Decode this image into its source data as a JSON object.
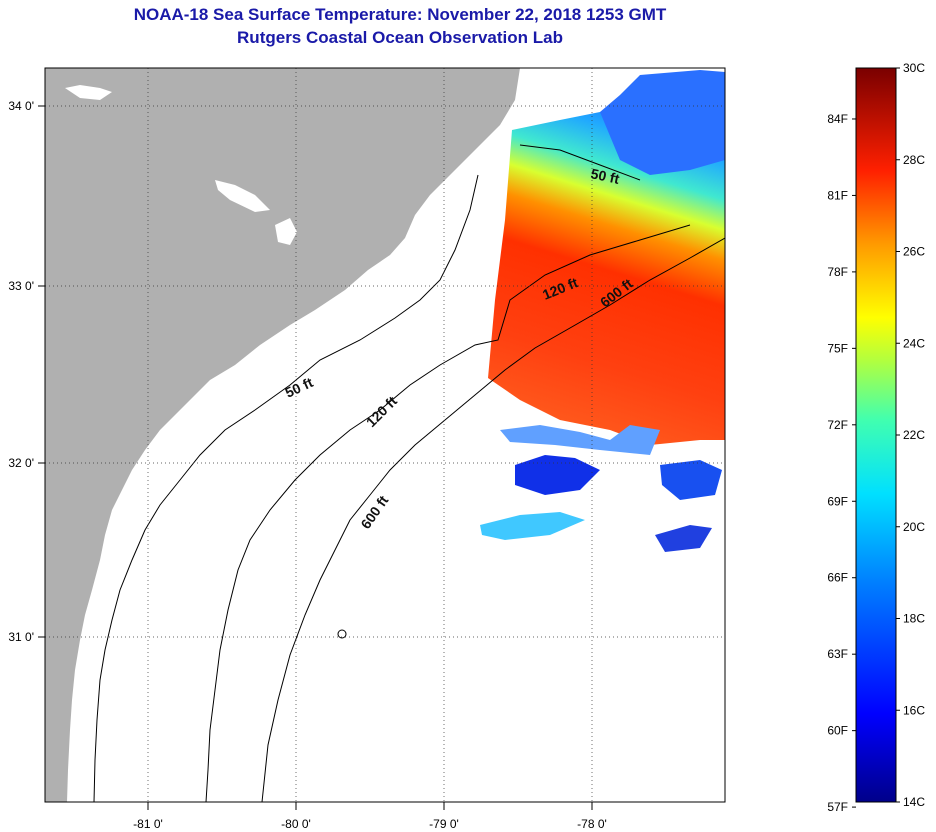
{
  "title": {
    "line1": "NOAA-18 Sea Surface Temperature:  November 22, 2018 1253 GMT",
    "line2": "Rutgers Coastal Ocean Observation Lab"
  },
  "map": {
    "lon_ticks": [
      "-81 0'",
      "-80 0'",
      "-79 0'",
      "-78 0'"
    ],
    "lat_ticks": [
      "34 0'",
      "33 0'",
      "32 0'",
      "31 0'"
    ],
    "contours": [
      {
        "label": "50 ft",
        "depth_ft": 50
      },
      {
        "label": "120 ft",
        "depth_ft": 120
      },
      {
        "label": "600 ft",
        "depth_ft": 600
      }
    ],
    "colors": {
      "land": "#b0b0b0",
      "ocean_nodata": "#ffffff",
      "warm": "#ff3a00",
      "cool": "#1050ff"
    }
  },
  "colorbar": {
    "fahrenheit": [
      "84F",
      "81F",
      "78F",
      "75F",
      "72F",
      "69F",
      "66F",
      "63F",
      "60F",
      "57F"
    ],
    "celsius": [
      "30C",
      "28C",
      "26C",
      "24C",
      "22C",
      "20C",
      "18C",
      "16C",
      "14C"
    ],
    "range_c": [
      14,
      30
    ],
    "range_f": [
      57,
      86
    ]
  }
}
